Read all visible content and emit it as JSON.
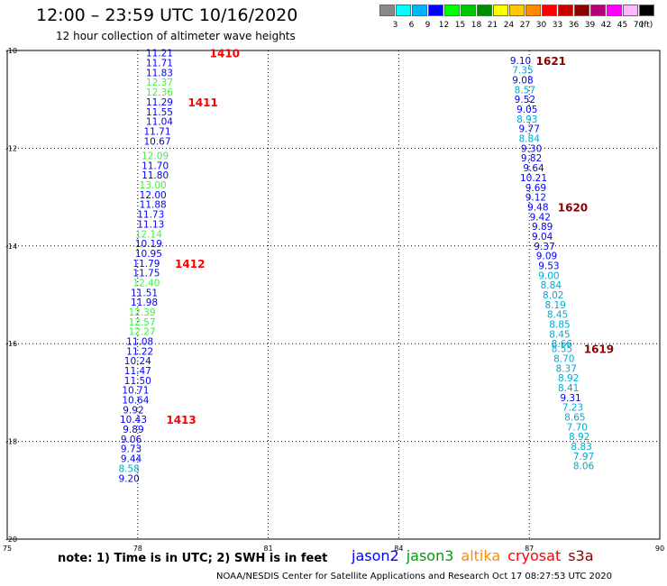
{
  "header": {
    "title": "12:00 – 23:59 UTC 10/16/2020",
    "subtitle": "12 hour collection of altimeter wave heights"
  },
  "legend": {
    "unit": "(ft)",
    "bins": [
      {
        "color": "#888888",
        "label": "3"
      },
      {
        "color": "#00ffff",
        "label": "6"
      },
      {
        "color": "#00b4ff",
        "label": "9"
      },
      {
        "color": "#0000ff",
        "label": "12"
      },
      {
        "color": "#00ff00",
        "label": "15"
      },
      {
        "color": "#00c800",
        "label": "18"
      },
      {
        "color": "#008c00",
        "label": "21"
      },
      {
        "color": "#ffff00",
        "label": "24"
      },
      {
        "color": "#ffc800",
        "label": "27"
      },
      {
        "color": "#ff8c00",
        "label": "30"
      },
      {
        "color": "#ff0000",
        "label": "33"
      },
      {
        "color": "#c80000",
        "label": "36"
      },
      {
        "color": "#8c0000",
        "label": "39"
      },
      {
        "color": "#b40078",
        "label": "42"
      },
      {
        "color": "#ff00ff",
        "label": "45"
      },
      {
        "color": "#ffbaff",
        "label": "70"
      },
      {
        "color": "#000000",
        "label": ""
      }
    ]
  },
  "note": "note:  1) Time is in UTC;  2) SWH is in feet",
  "satellites": [
    {
      "name": "jason2",
      "color": "#0000ff"
    },
    {
      "name": "jason3",
      "color": "#00a000"
    },
    {
      "name": "altika",
      "color": "#ff8c00"
    },
    {
      "name": "cryosat",
      "color": "#ff0000"
    },
    {
      "name": "s3a",
      "color": "#8c0000"
    }
  ],
  "footer": "NOAA/NESDIS Center for Satellite Applications and Research    Oct 17 08:27:53 UTC 2020",
  "chart_data": {
    "type": "scatter",
    "xlim": [
      75,
      90
    ],
    "ylim": [
      -20,
      -10
    ],
    "x_ticks": [
      "75",
      "78",
      "81",
      "84",
      "87",
      "90"
    ],
    "y_ticks": [
      "-10",
      "-12",
      "-14",
      "-16",
      "-18",
      "-20"
    ],
    "grid": true,
    "track1_values": [
      {
        "x": 78.5,
        "y": -10.05,
        "v": "11.21",
        "c": "#0000ff"
      },
      {
        "x": 78.5,
        "y": -10.25,
        "v": "11.71",
        "c": "#0000ff"
      },
      {
        "x": 78.5,
        "y": -10.45,
        "v": "11.83",
        "c": "#0000ff"
      },
      {
        "x": 78.5,
        "y": -10.65,
        "v": "12.37",
        "c": "#44ee44"
      },
      {
        "x": 78.5,
        "y": -10.85,
        "v": "12.36",
        "c": "#44ee44"
      },
      {
        "x": 78.5,
        "y": -11.05,
        "v": "11.29",
        "c": "#0000ff"
      },
      {
        "x": 78.5,
        "y": -11.25,
        "v": "11.55",
        "c": "#0000ff"
      },
      {
        "x": 78.5,
        "y": -11.45,
        "v": "11.04",
        "c": "#0000ff"
      },
      {
        "x": 78.45,
        "y": -11.65,
        "v": "11.71",
        "c": "#0000ff"
      },
      {
        "x": 78.45,
        "y": -11.85,
        "v": "10.67",
        "c": "#0000ff"
      },
      {
        "x": 78.4,
        "y": -12.15,
        "v": "12.09",
        "c": "#44ee44"
      },
      {
        "x": 78.4,
        "y": -12.35,
        "v": "11.70",
        "c": "#0000ff"
      },
      {
        "x": 78.4,
        "y": -12.55,
        "v": "11.80",
        "c": "#0000ff"
      },
      {
        "x": 78.35,
        "y": -12.75,
        "v": "13.00",
        "c": "#44ee44"
      },
      {
        "x": 78.35,
        "y": -12.95,
        "v": "12.00",
        "c": "#0000ff"
      },
      {
        "x": 78.35,
        "y": -13.15,
        "v": "11.88",
        "c": "#0000ff"
      },
      {
        "x": 78.3,
        "y": -13.35,
        "v": "11.73",
        "c": "#0000ff"
      },
      {
        "x": 78.3,
        "y": -13.55,
        "v": "11.13",
        "c": "#0000ff"
      },
      {
        "x": 78.25,
        "y": -13.75,
        "v": "12.14",
        "c": "#44ee44"
      },
      {
        "x": 78.25,
        "y": -13.95,
        "v": "10.19",
        "c": "#0000ff"
      },
      {
        "x": 78.25,
        "y": -14.15,
        "v": "10.95",
        "c": "#0000ff"
      },
      {
        "x": 78.2,
        "y": -14.35,
        "v": "11.79",
        "c": "#0000ff"
      },
      {
        "x": 78.2,
        "y": -14.55,
        "v": "11.75",
        "c": "#0000ff"
      },
      {
        "x": 78.2,
        "y": -14.75,
        "v": "12.40",
        "c": "#44ee44"
      },
      {
        "x": 78.15,
        "y": -14.95,
        "v": "11.51",
        "c": "#0000ff"
      },
      {
        "x": 78.15,
        "y": -15.15,
        "v": "11.98",
        "c": "#0000ff"
      },
      {
        "x": 78.1,
        "y": -15.35,
        "v": "12.39",
        "c": "#44ee44"
      },
      {
        "x": 78.1,
        "y": -15.55,
        "v": "12.57",
        "c": "#44ee44"
      },
      {
        "x": 78.1,
        "y": -15.75,
        "v": "12.27",
        "c": "#44ee44"
      },
      {
        "x": 78.05,
        "y": -15.95,
        "v": "11.08",
        "c": "#0000ff"
      },
      {
        "x": 78.05,
        "y": -16.15,
        "v": "11.22",
        "c": "#0000ff"
      },
      {
        "x": 78.0,
        "y": -16.35,
        "v": "10.24",
        "c": "#0000ff"
      },
      {
        "x": 78.0,
        "y": -16.55,
        "v": "11.47",
        "c": "#0000ff"
      },
      {
        "x": 78.0,
        "y": -16.75,
        "v": "11.50",
        "c": "#0000ff"
      },
      {
        "x": 77.95,
        "y": -16.95,
        "v": "10.71",
        "c": "#0000ff"
      },
      {
        "x": 77.95,
        "y": -17.15,
        "v": "10.64",
        "c": "#0000ff"
      },
      {
        "x": 77.9,
        "y": -17.35,
        "v": "9.92",
        "c": "#0000ff"
      },
      {
        "x": 77.9,
        "y": -17.55,
        "v": "10.43",
        "c": "#0000ff"
      },
      {
        "x": 77.9,
        "y": -17.75,
        "v": "9.89",
        "c": "#0000ff"
      },
      {
        "x": 77.85,
        "y": -17.95,
        "v": "9.06",
        "c": "#0000ff"
      },
      {
        "x": 77.85,
        "y": -18.15,
        "v": "9.73",
        "c": "#0000ff"
      },
      {
        "x": 77.85,
        "y": -18.35,
        "v": "9.44",
        "c": "#0000ff"
      },
      {
        "x": 77.8,
        "y": -18.55,
        "v": "8.58",
        "c": "#00aacc"
      },
      {
        "x": 77.8,
        "y": -18.75,
        "v": "9.20",
        "c": "#0000ff"
      }
    ],
    "track2_values": [
      {
        "x": 86.8,
        "y": -10.2,
        "v": "9.10",
        "c": "#0000ff"
      },
      {
        "x": 86.85,
        "y": -10.4,
        "v": "7.35",
        "c": "#00aacc"
      },
      {
        "x": 86.85,
        "y": -10.6,
        "v": "9.08",
        "c": "#0000ff"
      },
      {
        "x": 86.9,
        "y": -10.8,
        "v": "8.57",
        "c": "#00aacc"
      },
      {
        "x": 86.9,
        "y": -11.0,
        "v": "9.52",
        "c": "#0000ff"
      },
      {
        "x": 86.95,
        "y": -11.2,
        "v": "9.05",
        "c": "#0000ff"
      },
      {
        "x": 86.95,
        "y": -11.4,
        "v": "8.93",
        "c": "#00aacc"
      },
      {
        "x": 87.0,
        "y": -11.6,
        "v": "9.77",
        "c": "#0000ff"
      },
      {
        "x": 87.0,
        "y": -11.8,
        "v": "8.84",
        "c": "#00aacc"
      },
      {
        "x": 87.05,
        "y": -12.0,
        "v": "9.30",
        "c": "#0000ff"
      },
      {
        "x": 87.05,
        "y": -12.2,
        "v": "9.82",
        "c": "#0000ff"
      },
      {
        "x": 87.1,
        "y": -12.4,
        "v": "9.64",
        "c": "#0000ff"
      },
      {
        "x": 87.1,
        "y": -12.6,
        "v": "10.21",
        "c": "#0000ff"
      },
      {
        "x": 87.15,
        "y": -12.8,
        "v": "9.69",
        "c": "#0000ff"
      },
      {
        "x": 87.15,
        "y": -13.0,
        "v": "9.12",
        "c": "#0000ff"
      },
      {
        "x": 87.2,
        "y": -13.2,
        "v": "9.48",
        "c": "#0000ff"
      },
      {
        "x": 87.25,
        "y": -13.4,
        "v": "9.42",
        "c": "#0000ff"
      },
      {
        "x": 87.3,
        "y": -13.6,
        "v": "9.89",
        "c": "#0000ff"
      },
      {
        "x": 87.3,
        "y": -13.8,
        "v": "9.04",
        "c": "#0000ff"
      },
      {
        "x": 87.35,
        "y": -14.0,
        "v": "9.37",
        "c": "#0000ff"
      },
      {
        "x": 87.4,
        "y": -14.2,
        "v": "9.09",
        "c": "#0000ff"
      },
      {
        "x": 87.45,
        "y": -14.4,
        "v": "9.53",
        "c": "#0000ff"
      },
      {
        "x": 87.45,
        "y": -14.6,
        "v": "9.00",
        "c": "#00aacc"
      },
      {
        "x": 87.5,
        "y": -14.8,
        "v": "8.84",
        "c": "#00aacc"
      },
      {
        "x": 87.55,
        "y": -15.0,
        "v": "8.02",
        "c": "#00aacc"
      },
      {
        "x": 87.6,
        "y": -15.2,
        "v": "8.19",
        "c": "#00aacc"
      },
      {
        "x": 87.65,
        "y": -15.4,
        "v": "8.45",
        "c": "#00aacc"
      },
      {
        "x": 87.7,
        "y": -15.6,
        "v": "8.85",
        "c": "#00aacc"
      },
      {
        "x": 87.7,
        "y": -15.8,
        "v": "8.45",
        "c": "#00aacc"
      },
      {
        "x": 87.75,
        "y": -16.0,
        "v": "8.66",
        "c": "#00aacc"
      },
      {
        "x": 87.75,
        "y": -16.1,
        "v": "8.55",
        "c": "#00aacc"
      },
      {
        "x": 87.8,
        "y": -16.3,
        "v": "8.70",
        "c": "#00aacc"
      },
      {
        "x": 87.85,
        "y": -16.5,
        "v": "8.37",
        "c": "#00aacc"
      },
      {
        "x": 87.9,
        "y": -16.7,
        "v": "8.92",
        "c": "#00aacc"
      },
      {
        "x": 87.9,
        "y": -16.9,
        "v": "8.41",
        "c": "#00aacc"
      },
      {
        "x": 87.95,
        "y": -17.1,
        "v": "9.31",
        "c": "#0000ff"
      },
      {
        "x": 88.0,
        "y": -17.3,
        "v": "7.23",
        "c": "#00aacc"
      },
      {
        "x": 88.05,
        "y": -17.5,
        "v": "8.65",
        "c": "#00aacc"
      },
      {
        "x": 88.1,
        "y": -17.7,
        "v": "7.70",
        "c": "#00aacc"
      },
      {
        "x": 88.15,
        "y": -17.9,
        "v": "8.92",
        "c": "#00aacc"
      },
      {
        "x": 88.2,
        "y": -18.1,
        "v": "8.83",
        "c": "#00aacc"
      },
      {
        "x": 88.25,
        "y": -18.3,
        "v": "7.97",
        "c": "#00aacc"
      },
      {
        "x": 88.25,
        "y": -18.5,
        "v": "8.06",
        "c": "#00aacc"
      }
    ],
    "time_labels": [
      {
        "x": 80.0,
        "y": -10.05,
        "v": "1410",
        "c": "#ff0000"
      },
      {
        "x": 79.5,
        "y": -11.05,
        "v": "1411",
        "c": "#ff0000"
      },
      {
        "x": 79.2,
        "y": -14.35,
        "v": "1412",
        "c": "#ff0000"
      },
      {
        "x": 79.0,
        "y": -17.55,
        "v": "1413",
        "c": "#ff0000"
      },
      {
        "x": 87.5,
        "y": -10.2,
        "v": "1621",
        "c": "#8c0000"
      },
      {
        "x": 88.0,
        "y": -13.2,
        "v": "1620",
        "c": "#8c0000"
      },
      {
        "x": 88.6,
        "y": -16.1,
        "v": "1619",
        "c": "#8c0000"
      }
    ]
  }
}
